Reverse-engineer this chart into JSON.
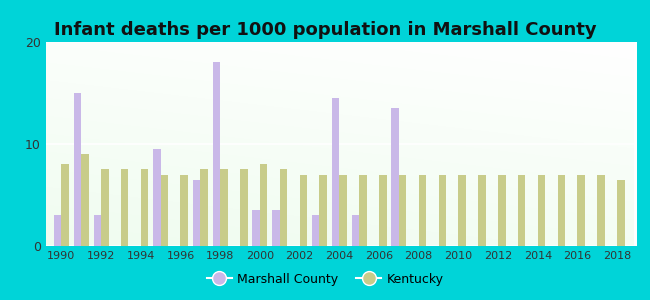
{
  "title": "Infant deaths per 1000 population in Marshall County",
  "years": [
    1990,
    1991,
    1992,
    1993,
    1994,
    1995,
    1996,
    1997,
    1998,
    1999,
    2000,
    2001,
    2002,
    2003,
    2004,
    2005,
    2006,
    2007,
    2008,
    2009,
    2010,
    2011,
    2012,
    2013,
    2014,
    2015,
    2016,
    2017,
    2018
  ],
  "marshall": [
    3.0,
    15.0,
    3.0,
    0,
    0,
    9.5,
    0,
    6.5,
    18.0,
    0,
    3.5,
    3.5,
    0,
    3.0,
    14.5,
    3.0,
    0,
    13.5,
    0,
    0,
    0,
    0,
    0,
    0,
    0,
    0,
    0,
    0,
    0
  ],
  "kentucky": [
    8.0,
    9.0,
    7.5,
    7.5,
    7.5,
    7.0,
    7.0,
    7.5,
    7.5,
    7.5,
    8.0,
    7.5,
    7.0,
    7.0,
    7.0,
    7.0,
    7.0,
    7.0,
    7.0,
    7.0,
    7.0,
    7.0,
    7.0,
    7.0,
    7.0,
    7.0,
    7.0,
    7.0,
    6.5
  ],
  "marshall_color": "#c9b8e8",
  "kentucky_color": "#c8cc8a",
  "ylim": [
    0,
    20
  ],
  "yticks": [
    0,
    10,
    20
  ],
  "bg_outer": "#00d4d8",
  "title_fontsize": 13,
  "bar_width": 0.38,
  "xticks": [
    1990,
    1992,
    1994,
    1996,
    1998,
    2000,
    2002,
    2004,
    2006,
    2008,
    2010,
    2012,
    2014,
    2016,
    2018
  ]
}
